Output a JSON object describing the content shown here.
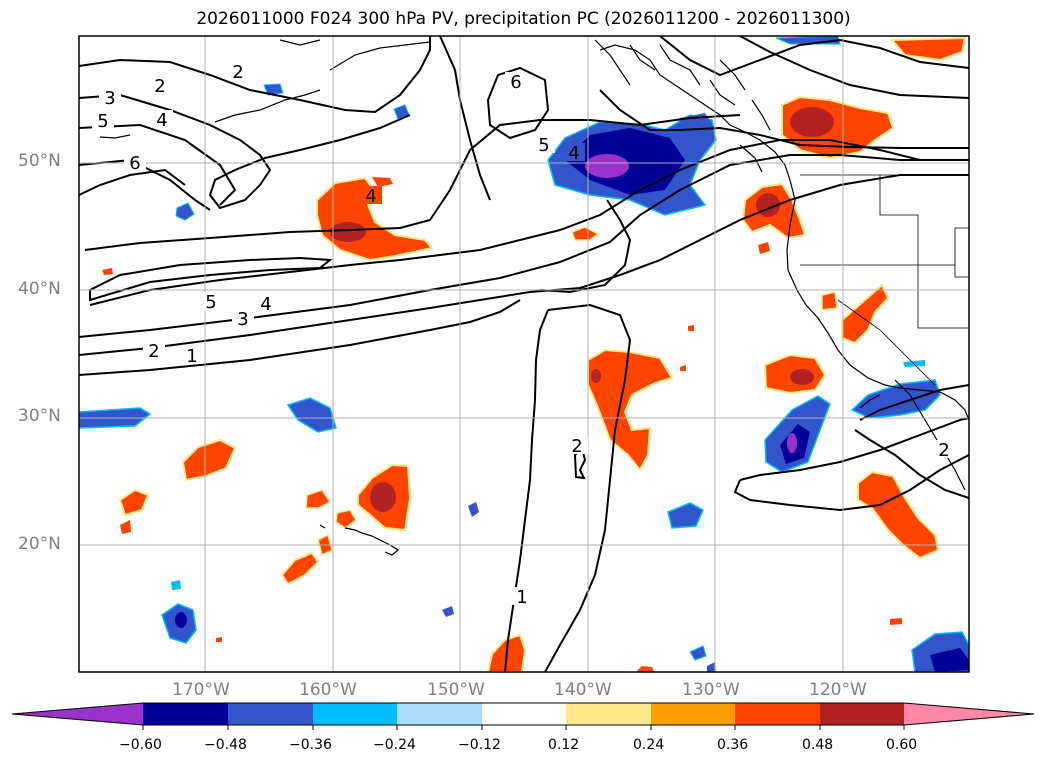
{
  "title": "2026011000 F024 300 hPa PV, precipitation PC (2026011200 - 2026011300)",
  "lat_labels": [
    "50°N",
    "40°N",
    "30°N",
    "20°N"
  ],
  "lon_labels": [
    "170°W",
    "160°W",
    "150°W",
    "140°W",
    "130°W",
    "120°W"
  ],
  "contour_labels": [
    "1",
    "2",
    "3",
    "4",
    "5",
    "6"
  ],
  "colorbar": {
    "tick_labels": [
      "−0.60",
      "−0.48",
      "−0.36",
      "−0.24",
      "−0.12",
      "0.12",
      "0.24",
      "0.36",
      "0.48",
      "0.60"
    ],
    "colors": {
      "below_min": "#9933cc",
      "neg_060_048": "#000099",
      "neg_048_036": "#3355cc",
      "neg_036_024": "#00bbff",
      "neg_024_012": "#aaddf7",
      "neutral": "#ffffff",
      "pos_012_024": "#ffe88a",
      "pos_024_036": "#ff9e00",
      "pos_036_048": "#ff4400",
      "pos_048_060": "#b22222",
      "above_max": "#ff88aa"
    }
  },
  "colors": {
    "contour": "#000000",
    "grid": "#b0b0b0",
    "coast": "#000000",
    "tick_label": "#808080"
  }
}
